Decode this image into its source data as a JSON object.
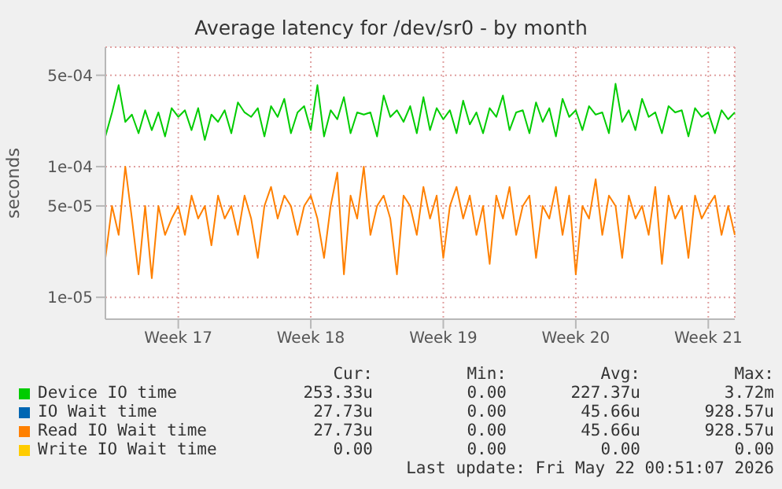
{
  "chart_data": {
    "type": "line",
    "title": "Average latency for /dev/sr0 - by month",
    "ylabel": "seconds",
    "log": true,
    "grid": true,
    "legend": "bottom",
    "line_style": "solid",
    "marker": "none",
    "ylim": [
      6.8e-06,
      0.00082
    ],
    "yticks": [
      {
        "value": 1e-05,
        "label": "1e-05"
      },
      {
        "value": 5e-05,
        "label": "5e-05"
      },
      {
        "value": 0.0001,
        "label": "1e-04"
      },
      {
        "value": 0.0005,
        "label": "5e-04"
      }
    ],
    "categories": [
      null,
      null,
      null,
      null,
      null,
      null,
      null,
      null,
      null,
      null,
      null,
      "Week 17",
      null,
      null,
      null,
      null,
      null,
      null,
      null,
      null,
      null,
      null,
      null,
      null,
      null,
      null,
      null,
      null,
      null,
      null,
      null,
      "Week 18",
      null,
      null,
      null,
      null,
      null,
      null,
      null,
      null,
      null,
      null,
      null,
      null,
      null,
      null,
      null,
      null,
      null,
      null,
      null,
      "Week 19",
      null,
      null,
      null,
      null,
      null,
      null,
      null,
      null,
      null,
      null,
      null,
      null,
      null,
      null,
      null,
      null,
      null,
      null,
      null,
      "Week 20",
      null,
      null,
      null,
      null,
      null,
      null,
      null,
      null,
      null,
      null,
      null,
      null,
      null,
      null,
      null,
      null,
      null,
      null,
      null,
      "Week 21",
      null,
      null,
      null,
      null
    ],
    "series": [
      {
        "name": "Device IO time",
        "color": "#00cc00",
        "values": [
          0.00017,
          0.00026,
          0.00042,
          0.00022,
          0.00025,
          0.00018,
          0.00027,
          0.00019,
          0.00026,
          0.00017,
          0.00028,
          0.00024,
          0.00027,
          0.00019,
          0.00028,
          0.00016,
          0.00025,
          0.00022,
          0.00027,
          0.00018,
          0.00031,
          0.00026,
          0.00024,
          0.00028,
          0.00017,
          0.00029,
          0.00024,
          0.00033,
          0.00018,
          0.00026,
          0.00029,
          0.00019,
          0.00042,
          0.00017,
          0.00027,
          0.00023,
          0.00034,
          0.00018,
          0.00026,
          0.00025,
          0.00026,
          0.00017,
          0.00035,
          0.00024,
          0.00027,
          0.00022,
          0.00029,
          0.00018,
          0.00034,
          0.00019,
          0.00028,
          0.00023,
          0.00027,
          0.00018,
          0.00032,
          0.00021,
          0.00026,
          0.00018,
          0.00028,
          0.00024,
          0.00035,
          0.00019,
          0.00026,
          0.00027,
          0.00018,
          0.00031,
          0.00022,
          0.00028,
          0.00017,
          0.00033,
          0.00024,
          0.00027,
          0.00019,
          0.00029,
          0.00025,
          0.00026,
          0.00018,
          0.00043,
          0.00022,
          0.00027,
          0.00019,
          0.00033,
          0.00024,
          0.00026,
          0.00018,
          0.00029,
          0.00026,
          0.00027,
          0.00017,
          0.00028,
          0.00024,
          0.00026,
          0.00018,
          0.00027,
          0.00023,
          0.00026
        ]
      },
      {
        "name": "IO Wait time",
        "color": "#0066b3",
        "values": [
          null,
          null,
          null,
          null,
          null,
          null,
          null,
          null,
          null,
          null,
          null,
          null,
          null,
          null,
          null,
          null,
          null,
          null,
          null,
          null,
          null,
          null,
          null,
          null,
          null,
          null,
          null,
          null,
          null,
          null,
          null,
          null,
          null,
          null,
          null,
          null,
          null,
          null,
          null,
          null,
          null,
          null,
          null,
          null,
          null,
          null,
          null,
          null,
          null,
          null,
          null,
          null,
          null,
          null,
          null,
          null,
          null,
          null,
          null,
          null,
          null,
          null,
          null,
          null,
          null,
          null,
          null,
          null,
          null,
          null,
          null,
          null,
          null,
          null,
          null,
          null,
          null,
          null,
          null,
          null,
          null,
          null,
          null,
          null,
          null,
          null,
          null,
          null,
          null,
          null,
          null,
          null,
          null,
          null,
          null,
          null
        ]
      },
      {
        "name": "Read IO Wait time",
        "color": "#ff8000",
        "values": [
          2e-05,
          5e-05,
          3e-05,
          0.0001,
          4e-05,
          1.5e-05,
          5e-05,
          1.4e-05,
          5e-05,
          3e-05,
          4e-05,
          5e-05,
          3e-05,
          6e-05,
          4e-05,
          5e-05,
          2.5e-05,
          6e-05,
          4e-05,
          5e-05,
          3e-05,
          6e-05,
          4e-05,
          2e-05,
          5e-05,
          7e-05,
          4e-05,
          6e-05,
          5e-05,
          3e-05,
          5e-05,
          6e-05,
          4e-05,
          2e-05,
          5e-05,
          9e-05,
          1.5e-05,
          6e-05,
          4e-05,
          0.0001,
          3e-05,
          5e-05,
          6e-05,
          4e-05,
          1.5e-05,
          6e-05,
          5e-05,
          3e-05,
          7e-05,
          4e-05,
          6e-05,
          2e-05,
          5e-05,
          7e-05,
          4e-05,
          6e-05,
          3e-05,
          5e-05,
          1.8e-05,
          6e-05,
          4e-05,
          7e-05,
          3e-05,
          5e-05,
          6e-05,
          2e-05,
          5e-05,
          4e-05,
          7e-05,
          3e-05,
          6e-05,
          1.5e-05,
          5e-05,
          4e-05,
          8e-05,
          3e-05,
          6e-05,
          5e-05,
          2e-05,
          6e-05,
          4e-05,
          5e-05,
          3e-05,
          7e-05,
          1.8e-05,
          6e-05,
          4e-05,
          5e-05,
          2e-05,
          6e-05,
          4e-05,
          5e-05,
          6e-05,
          3e-05,
          5e-05,
          3e-05
        ]
      },
      {
        "name": "Write IO Wait time",
        "color": "#ffcc00",
        "values": [
          null,
          null,
          null,
          null,
          null,
          null,
          null,
          null,
          null,
          null,
          null,
          null,
          null,
          null,
          null,
          null,
          null,
          null,
          null,
          null,
          null,
          null,
          null,
          null,
          null,
          null,
          null,
          null,
          null,
          null,
          null,
          null,
          null,
          null,
          null,
          null,
          null,
          null,
          null,
          null,
          null,
          null,
          null,
          null,
          null,
          null,
          null,
          null,
          null,
          null,
          null,
          null,
          null,
          null,
          null,
          null,
          null,
          null,
          null,
          null,
          null,
          null,
          null,
          null,
          null,
          null,
          null,
          null,
          null,
          null,
          null,
          null,
          null,
          null,
          null,
          null,
          null,
          null,
          null,
          null,
          null,
          null,
          null,
          null,
          null,
          null,
          null,
          null,
          null,
          null,
          null,
          null,
          null,
          null,
          null,
          null
        ]
      }
    ],
    "annotations": [
      "Cur:",
      "Min:",
      "Avg:",
      "Max:",
      "253.33u",
      "0.00",
      "227.37u",
      "3.72m",
      "27.73u",
      "0.00",
      "45.66u",
      "928.57u",
      "27.73u",
      "0.00",
      "45.66u",
      "928.57u",
      "0.00",
      "0.00",
      "0.00",
      "0.00",
      "Last update: Fri May 22 00:51:07 2026"
    ]
  }
}
